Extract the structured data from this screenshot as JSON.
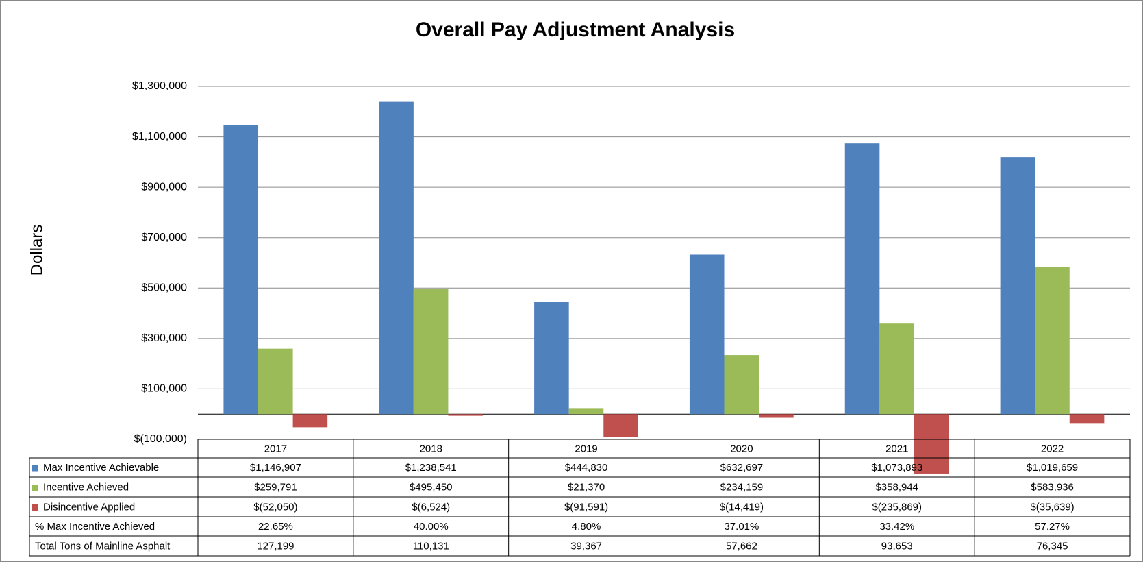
{
  "chart_data": {
    "type": "bar",
    "title": "Overall Pay Adjustment Analysis",
    "y_label": "Dollars",
    "categories": [
      "2017",
      "2018",
      "2019",
      "2020",
      "2021",
      "2022"
    ],
    "series": [
      {
        "name": "Max Incentive Achievable",
        "color": "#4f81bd",
        "values": [
          1146907,
          1238541,
          444830,
          632697,
          1073893,
          1019659
        ],
        "value_labels": [
          "$1,146,907",
          "$1,238,541",
          "$444,830",
          "$632,697",
          "$1,073,893",
          "$1,019,659"
        ]
      },
      {
        "name": "Incentive Achieved",
        "color": "#9bbb59",
        "values": [
          259791,
          495450,
          21370,
          234159,
          358944,
          583936
        ],
        "value_labels": [
          "$259,791",
          "$495,450",
          "$21,370",
          "$234,159",
          "$358,944",
          "$583,936"
        ]
      },
      {
        "name": "Disincentive Applied",
        "color": "#c0504d",
        "values": [
          -52050,
          -6524,
          -91591,
          -14419,
          -235869,
          -35639
        ],
        "value_labels": [
          "$(52,050)",
          "$(6,524)",
          "$(91,591)",
          "$(14,419)",
          "$(235,869)",
          "$(35,639)"
        ]
      }
    ],
    "table_rows": [
      {
        "name": "% Max Incentive Achieved",
        "values": [
          22.65,
          40.0,
          4.8,
          37.01,
          33.42,
          57.27
        ],
        "value_labels": [
          "22.65%",
          "40.00%",
          "4.80%",
          "37.01%",
          "33.42%",
          "57.27%"
        ]
      },
      {
        "name": "Total Tons of Mainline Asphalt",
        "values": [
          127199,
          110131,
          39367,
          57662,
          93653,
          76345
        ],
        "value_labels": [
          "127,199",
          "110,131",
          "39,367",
          "57,662",
          "93,653",
          "76,345"
        ]
      }
    ],
    "ylim": [
      -100000,
      1300000
    ],
    "yticks": [
      {
        "value": -100000,
        "label": "$(100,000)"
      },
      {
        "value": 100000,
        "label": "$100,000"
      },
      {
        "value": 300000,
        "label": "$300,000"
      },
      {
        "value": 500000,
        "label": "$500,000"
      },
      {
        "value": 700000,
        "label": "$700,000"
      },
      {
        "value": 900000,
        "label": "$900,000"
      },
      {
        "value": 1100000,
        "label": "$1,100,000"
      },
      {
        "value": 1300000,
        "label": "$1,300,000"
      }
    ],
    "grid": true
  }
}
